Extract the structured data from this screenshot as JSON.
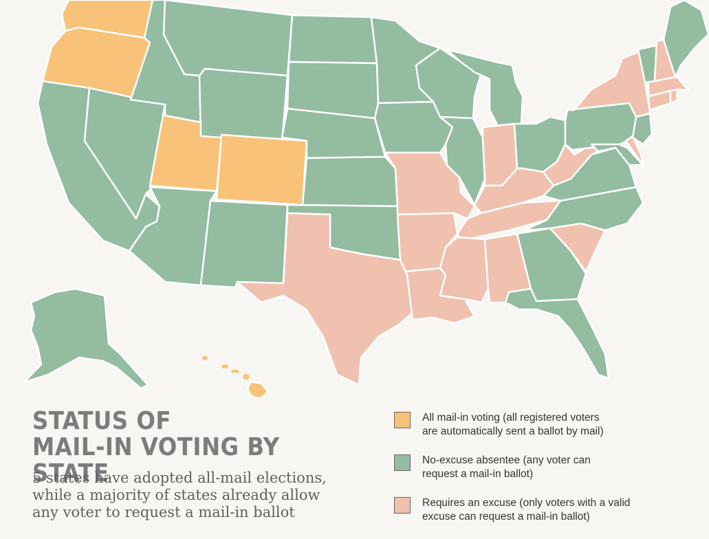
{
  "title": {
    "line1": "STATUS OF",
    "line2": "MAIL-IN VOTING BY STATE"
  },
  "subtitle": {
    "line1": "5 states have adopted all-mail elections,",
    "line2": "while a majority of states already allow",
    "line3": "any voter to request a mail-in ballot"
  },
  "legend": [
    {
      "key": "all_mail",
      "color": "#f9c279",
      "line1": "All mail-in voting (all registered voters",
      "line2": "are automatically sent a ballot by mail)"
    },
    {
      "key": "no_excuse",
      "color": "#93bca1",
      "line1": "No-excuse absentee (any voter can",
      "line2": "request a mail-in ballot)"
    },
    {
      "key": "excuse",
      "color": "#efc1ae",
      "line1": "Requires an excuse (only voters with a valid",
      "line2": "excuse can request a mail-in ballot)"
    }
  ],
  "states": {
    "WA": "all_mail",
    "OR": "all_mail",
    "UT": "all_mail",
    "CO": "all_mail",
    "HI": "all_mail",
    "CA": "no_excuse",
    "NV": "no_excuse",
    "ID": "no_excuse",
    "MT": "no_excuse",
    "WY": "no_excuse",
    "AZ": "no_excuse",
    "NM": "no_excuse",
    "ND": "no_excuse",
    "SD": "no_excuse",
    "NE": "no_excuse",
    "KS": "no_excuse",
    "OK": "no_excuse",
    "MN": "no_excuse",
    "IA": "no_excuse",
    "WI": "no_excuse",
    "IL": "no_excuse",
    "MI": "no_excuse",
    "OH": "no_excuse",
    "PA": "no_excuse",
    "NJ": "no_excuse",
    "MD": "no_excuse",
    "VA": "no_excuse",
    "NC": "no_excuse",
    "GA": "no_excuse",
    "FL": "no_excuse",
    "ME": "no_excuse",
    "VT": "no_excuse",
    "AK": "no_excuse",
    "TX": "excuse",
    "MO": "excuse",
    "AR": "excuse",
    "LA": "excuse",
    "MS": "excuse",
    "AL": "excuse",
    "TN": "excuse",
    "KY": "excuse",
    "IN": "excuse",
    "WV": "excuse",
    "SC": "excuse",
    "NY": "excuse",
    "NH": "excuse",
    "MA": "excuse",
    "CT": "excuse",
    "RI": "excuse",
    "DE": "excuse"
  }
}
